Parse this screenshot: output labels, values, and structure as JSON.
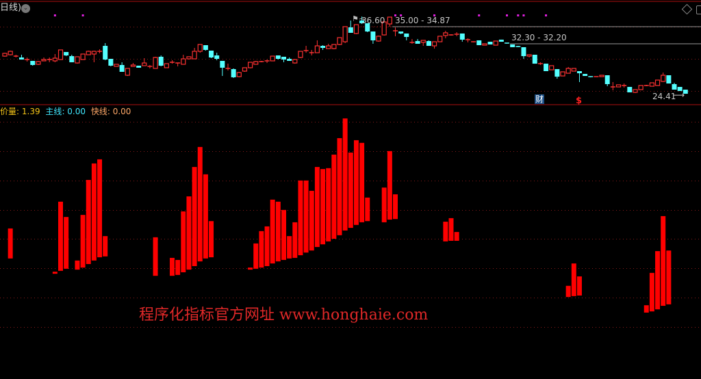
{
  "header": {
    "period_label": "日线)",
    "menu_icon": "chevron-down-circle-icon"
  },
  "toolbar_icons": [
    "diamond-icon",
    "window-icon"
  ],
  "indicator": {
    "items": [
      {
        "name": "价量",
        "value": "1.39",
        "color": "#f5c518"
      },
      {
        "name": "主线",
        "value": "0.00",
        "color": "#40e8ff"
      },
      {
        "name": "快线",
        "value": "0.00",
        "color": "#ffa868"
      }
    ]
  },
  "annotations": {
    "high_label": "36.60",
    "gap1_label": "35.00 - 34.87",
    "gap1_price": 35.0,
    "gap2_label": "32.30 - 32.20",
    "gap2_price": 32.3,
    "low_label": "24.41",
    "finance_badge": "财",
    "dividend_badge": "$"
  },
  "watermark": "程序化指标官方网址 www.honghaie.com",
  "colors": {
    "up": "#ff3232",
    "down": "#54ffff",
    "bar": "#ff0000",
    "grid": "#8a1a1a",
    "event_dot": "#e020e0"
  },
  "chart_data": [
    {
      "type": "candlestick",
      "format": [
        "open",
        "close",
        "high",
        "low"
      ],
      "event_dot_candles": [
        9,
        14,
        70,
        71,
        77,
        85,
        90,
        92,
        93,
        97
      ],
      "candles": [
        [
          30.35,
          30.79,
          30.89,
          30.25
        ],
        [
          30.57,
          31.11,
          31.22,
          30.46
        ],
        [
          30.35,
          30.35,
          30.57,
          30.14
        ],
        [
          30.14,
          29.81,
          30.57,
          29.81
        ],
        [
          29.81,
          29.81,
          30.14,
          29.49
        ],
        [
          29.6,
          28.95,
          29.6,
          28.84
        ],
        [
          29.06,
          29.49,
          29.6,
          28.95
        ],
        [
          29.6,
          29.81,
          30.14,
          29.6
        ],
        [
          29.81,
          29.81,
          30.14,
          29.38
        ],
        [
          29.6,
          30.03,
          30.68,
          29.38
        ],
        [
          29.81,
          31.33,
          31.33,
          29.81
        ],
        [
          31.0,
          30.46,
          31.0,
          30.35
        ],
        [
          30.35,
          29.38,
          30.57,
          29.38
        ],
        [
          29.27,
          30.25,
          30.25,
          29.16
        ],
        [
          29.81,
          30.68,
          30.68,
          29.81
        ],
        [
          30.57,
          31.11,
          31.22,
          30.57
        ],
        [
          30.68,
          31.11,
          31.22,
          29.38
        ],
        [
          31.11,
          31.11,
          31.43,
          30.79
        ],
        [
          31.97,
          29.81,
          32.41,
          29.7
        ],
        [
          29.92,
          28.84,
          29.92,
          28.73
        ],
        [
          28.73,
          29.06,
          29.06,
          28.73
        ],
        [
          28.95,
          27.87,
          29.38,
          27.87
        ],
        [
          27.33,
          28.41,
          28.41,
          27.22
        ],
        [
          28.73,
          28.95,
          29.27,
          28.73
        ],
        [
          28.84,
          28.52,
          28.84,
          28.52
        ],
        [
          28.84,
          29.27,
          30.03,
          28.84
        ],
        [
          28.73,
          28.73,
          28.95,
          28.41
        ],
        [
          28.41,
          30.14,
          30.25,
          28.41
        ],
        [
          30.25,
          28.84,
          30.46,
          28.73
        ],
        [
          28.52,
          29.16,
          29.16,
          28.52
        ],
        [
          29.38,
          29.38,
          29.71,
          29.16
        ],
        [
          29.27,
          29.27,
          29.27,
          28.73
        ],
        [
          29.06,
          29.92,
          30.57,
          29.06
        ],
        [
          29.92,
          30.25,
          30.25,
          29.81
        ],
        [
          29.92,
          31.11,
          31.65,
          29.92
        ],
        [
          31.11,
          32.19,
          32.19,
          30.89
        ],
        [
          32.08,
          31.33,
          32.08,
          31.22
        ],
        [
          31.22,
          30.14,
          31.22,
          30.03
        ],
        [
          30.46,
          29.92,
          30.89,
          29.7
        ],
        [
          29.6,
          28.52,
          29.6,
          27.22
        ],
        [
          28.41,
          28.41,
          29.16,
          28.09
        ],
        [
          28.3,
          27.01,
          28.41,
          26.9
        ],
        [
          27.11,
          27.76,
          27.87,
          27.0
        ],
        [
          27.98,
          28.52,
          28.52,
          27.87
        ],
        [
          28.52,
          29.38,
          29.38,
          28.41
        ],
        [
          29.06,
          29.49,
          29.6,
          29.06
        ],
        [
          29.49,
          29.49,
          29.6,
          29.38
        ],
        [
          29.6,
          29.6,
          29.81,
          29.27
        ],
        [
          29.6,
          30.35,
          30.35,
          29.6
        ],
        [
          30.46,
          29.92,
          30.46,
          29.81
        ],
        [
          30.25,
          29.81,
          30.25,
          29.38
        ],
        [
          29.92,
          29.6,
          30.14,
          29.6
        ],
        [
          29.27,
          29.81,
          29.81,
          29.16
        ],
        [
          30.14,
          31.11,
          31.11,
          30.03
        ],
        [
          31.22,
          31.22,
          31.97,
          30.89
        ],
        [
          30.89,
          30.89,
          31.33,
          30.46
        ],
        [
          30.89,
          31.97,
          32.84,
          30.89
        ],
        [
          31.97,
          31.65,
          32.08,
          31.33
        ],
        [
          31.54,
          31.97,
          32.3,
          31.54
        ],
        [
          31.54,
          32.19,
          32.19,
          31.43
        ],
        [
          32.19,
          33.27,
          33.27,
          32.08
        ],
        [
          32.62,
          35.0,
          35.0,
          32.41
        ],
        [
          34.89,
          34.03,
          35.97,
          34.03
        ],
        [
          33.92,
          35.32,
          35.32,
          33.81
        ],
        [
          35.97,
          35.54,
          36.6,
          35.43
        ],
        [
          35.54,
          34.24,
          35.54,
          34.13
        ],
        [
          34.24,
          32.84,
          34.24,
          32.3
        ],
        [
          32.73,
          33.49,
          33.6,
          32.62
        ],
        [
          33.7,
          35.75,
          36.19,
          33.6
        ],
        [
          35.43,
          36.51,
          36.51,
          35.0
        ],
        [
          34.35,
          34.35,
          34.89,
          33.49
        ],
        [
          34.24,
          33.92,
          34.24,
          33.81
        ],
        [
          33.92,
          33.38,
          33.92,
          32.84
        ],
        [
          32.41,
          32.52,
          33.05,
          32.3
        ],
        [
          32.73,
          32.3,
          33.05,
          32.3
        ],
        [
          32.52,
          32.84,
          32.84,
          31.97
        ],
        [
          32.73,
          31.97,
          32.84,
          31.97
        ],
        [
          31.97,
          32.62,
          32.62,
          31.54
        ],
        [
          32.62,
          33.49,
          33.49,
          32.62
        ],
        [
          33.6,
          34.03,
          34.35,
          33.16
        ],
        [
          33.7,
          33.7,
          33.81,
          33.6
        ],
        [
          33.81,
          33.81,
          34.13,
          33.49
        ],
        [
          33.92,
          32.95,
          33.92,
          32.62
        ],
        [
          32.95,
          32.95,
          33.16,
          32.52
        ],
        [
          32.62,
          32.62,
          32.62,
          32.52
        ],
        [
          32.84,
          32.08,
          32.84,
          32.08
        ],
        [
          32.08,
          32.3,
          32.3,
          32.08
        ],
        [
          32.62,
          32.19,
          32.62,
          32.19
        ],
        [
          32.08,
          32.73,
          32.73,
          32.08
        ],
        [
          32.95,
          32.62,
          32.95,
          32.62
        ],
        [
          32.41,
          32.3,
          32.41,
          32.3
        ],
        [
          32.19,
          31.76,
          32.19,
          31.76
        ],
        [
          31.86,
          31.76,
          31.97,
          31.76
        ],
        [
          31.76,
          30.35,
          31.76,
          29.92
        ],
        [
          30.35,
          30.57,
          30.57,
          30.14
        ],
        [
          30.57,
          29.16,
          30.57,
          29.16
        ],
        [
          29.16,
          29.16,
          29.38,
          28.95
        ],
        [
          29.16,
          27.98,
          29.16,
          27.98
        ],
        [
          28.19,
          28.84,
          28.84,
          28.19
        ],
        [
          28.3,
          27.11,
          28.3,
          26.79
        ],
        [
          27.22,
          27.87,
          27.87,
          27.22
        ],
        [
          27.65,
          28.41,
          28.63,
          27.65
        ],
        [
          27.98,
          28.41,
          28.41,
          27.98
        ],
        [
          27.98,
          27.65,
          27.98,
          26.25
        ],
        [
          27.54,
          27.22,
          27.54,
          27.22
        ],
        [
          27.11,
          27.0,
          27.11,
          27.0
        ],
        [
          27.11,
          27.11,
          27.11,
          27.11
        ],
        [
          27.11,
          27.33,
          27.33,
          27.11
        ],
        [
          27.33,
          25.93,
          27.33,
          25.6
        ],
        [
          25.49,
          25.49,
          26.25,
          24.95
        ],
        [
          25.49,
          25.82,
          25.82,
          25.49
        ],
        [
          25.71,
          25.71,
          26.03,
          25.39
        ],
        [
          25.49,
          24.63,
          25.49,
          24.63
        ],
        [
          24.63,
          25.06,
          25.06,
          24.52
        ],
        [
          25.06,
          25.71,
          25.71,
          25.06
        ],
        [
          25.71,
          25.71,
          25.82,
          25.6
        ],
        [
          25.6,
          26.14,
          26.14,
          25.6
        ],
        [
          25.71,
          26.57,
          26.57,
          25.71
        ],
        [
          26.36,
          27.33,
          27.76,
          26.25
        ],
        [
          27.33,
          26.03,
          27.33,
          26.03
        ],
        [
          25.93,
          25.06,
          26.14,
          25.06
        ],
        [
          25.49,
          24.85,
          25.49,
          24.85
        ],
        [
          25.06,
          24.41,
          25.06,
          24.41
        ]
      ]
    },
    {
      "type": "floating-bar",
      "series": [
        {
          "name": "价量",
          "format": [
            "candle_index",
            "low",
            "high"
          ],
          "bars": [
            [
              1,
              23.3,
              33.5
            ],
            [
              9,
              18.1,
              18.8
            ],
            [
              10,
              19.1,
              42.6
            ],
            [
              11,
              19.8,
              37.4
            ],
            [
              13,
              19.5,
              22.6
            ],
            [
              14,
              20.2,
              38.1
            ],
            [
              15,
              21.4,
              50.0
            ],
            [
              16,
              22.6,
              55.6
            ],
            [
              17,
              23.7,
              57.0
            ],
            [
              18,
              24.0,
              30.9
            ],
            [
              27,
              17.4,
              30.5
            ],
            [
              30,
              17.4,
              23.5
            ],
            [
              31,
              17.7,
              22.8
            ],
            [
              32,
              18.6,
              39.3
            ],
            [
              33,
              19.5,
              44.4
            ],
            [
              34,
              20.7,
              54.4
            ],
            [
              35,
              22.3,
              61.2
            ],
            [
              36,
              23.3,
              51.9
            ],
            [
              37,
              23.7,
              36.0
            ],
            [
              44,
              19.5,
              20.2
            ],
            [
              45,
              19.8,
              28.4
            ],
            [
              46,
              20.2,
              32.6
            ],
            [
              47,
              20.7,
              34.2
            ],
            [
              48,
              21.6,
              43.3
            ],
            [
              49,
              22.3,
              42.6
            ],
            [
              50,
              22.8,
              39.8
            ],
            [
              51,
              23.3,
              30.9
            ],
            [
              52,
              23.5,
              35.6
            ],
            [
              53,
              24.4,
              49.8
            ],
            [
              54,
              25.3,
              49.8
            ],
            [
              55,
              26.0,
              46.3
            ],
            [
              56,
              27.2,
              54.4
            ],
            [
              57,
              28.1,
              53.7
            ],
            [
              58,
              29.1,
              54.0
            ],
            [
              59,
              30.0,
              58.6
            ],
            [
              60,
              31.2,
              64.2
            ],
            [
              61,
              32.8,
              70.9
            ],
            [
              62,
              33.7,
              59.3
            ],
            [
              63,
              34.7,
              63.5
            ],
            [
              64,
              35.6,
              62.6
            ],
            [
              65,
              36.0,
              44.0
            ],
            [
              68,
              35.6,
              47.4
            ],
            [
              69,
              36.5,
              59.8
            ],
            [
              70,
              36.7,
              45.1
            ],
            [
              79,
              29.1,
              35.8
            ],
            [
              80,
              29.3,
              37.0
            ],
            [
              81,
              29.3,
              32.3
            ],
            [
              101,
              10.2,
              14.0
            ],
            [
              102,
              10.5,
              21.6
            ],
            [
              103,
              10.7,
              17.2
            ],
            [
              115,
              4.9,
              7.4
            ],
            [
              116,
              5.3,
              18.4
            ],
            [
              117,
              6.0,
              25.8
            ],
            [
              118,
              7.2,
              37.7
            ],
            [
              119,
              7.7,
              26.0
            ]
          ]
        }
      ]
    }
  ]
}
